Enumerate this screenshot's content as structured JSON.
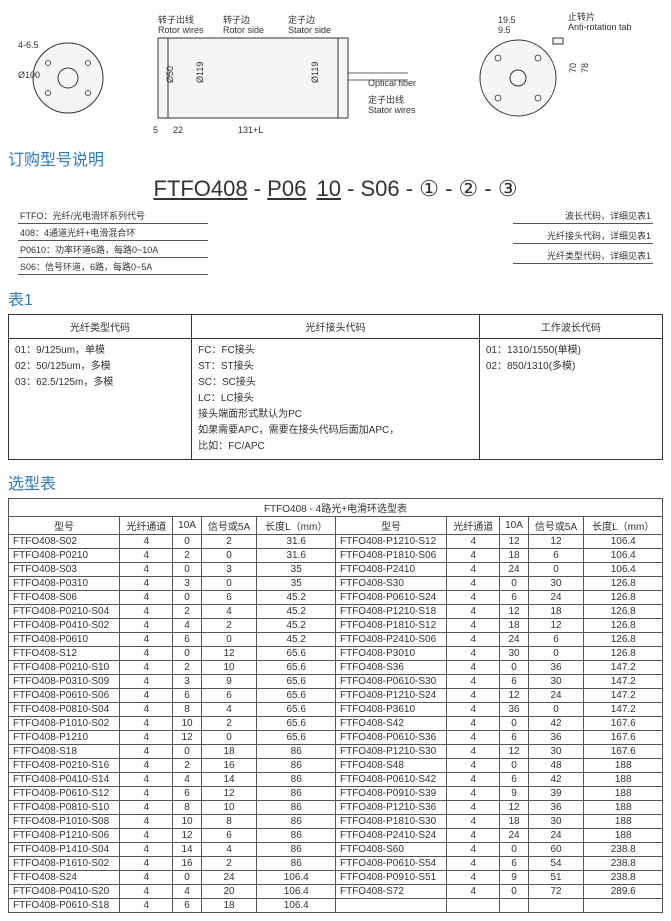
{
  "diagram": {
    "labels": {
      "rotor_cn": "转子出线",
      "rotor_en": "Rotor wires",
      "rotor_side_cn": "转子边",
      "rotor_side_en": "Rotor side",
      "stator_side_cn": "定子边",
      "stator_side_en": "Stator side",
      "stator_cn": "定子出线",
      "stator_en": "Stator wires",
      "optical_fiber": "Optical fiber",
      "anti_rotation_cn": "止转片",
      "anti_rotation_en": "Anti-rotation tab",
      "d100": "Ø100",
      "d50": "Ø50",
      "d119a": "Ø119",
      "d119b": "Ø119",
      "dim46": "4-6.5",
      "dim5": "5",
      "dim22": "22",
      "dim131": "131+L",
      "dim195": "19.5",
      "dim95": "9.5",
      "dim70": "70",
      "dim78": "78"
    }
  },
  "order_title": "订购型号说明",
  "partnum": {
    "p1": "FTFO",
    "p2": "408",
    "dash": " - ",
    "p3": "P06",
    "p4": "10",
    "p5a": "- S06 -",
    "c1": "①",
    "c2": "②",
    "c3": "③"
  },
  "callouts_left": [
    "FTFO：光纤/光电滑环系列代号",
    "408：4通道光纤+电滑混合环",
    "P0610：功率环道6路，每路0~10A",
    "S06：信号环道，6路，每路0~5A"
  ],
  "callouts_right": [
    "波长代码，详细见表1",
    "光纤接头代码，详细见表1",
    "光纤类型代码，详细见表1"
  ],
  "table1_title": "表1",
  "table1_headers": [
    "光纤类型代码",
    "光纤接头代码",
    "工作波长代码"
  ],
  "table1_col1": "01：9/125um，单模\n02：50/125um，多模\n03：62.5/125m，多模",
  "table1_col2": "FC：FC接头\nST：ST接头\nSC：SC接头\nLC：LC接头\n接头端面形式默认为PC\n如果需要APC，需要在接头代码后面加APC，\n比如：FC/APC",
  "table1_col3": "01：1310/1550(单模)\n02：850/1310(多模)",
  "sel_title": "选型表",
  "sel_table_caption": "FTFO408 - 4路光+电滑环选型表",
  "sel_headers": [
    "型号",
    "光纤通道",
    "10A",
    "信号或5A",
    "长度L（mm）"
  ],
  "sel_rows_left": [
    [
      "FTFO408-S02",
      "4",
      "0",
      "2",
      "31.6"
    ],
    [
      "FTFO408-P0210",
      "4",
      "2",
      "0",
      "31.6"
    ],
    [
      "FTFO408-S03",
      "4",
      "0",
      "3",
      "35"
    ],
    [
      "FTFO408-P0310",
      "4",
      "3",
      "0",
      "35"
    ],
    [
      "FTFO408-S06",
      "4",
      "0",
      "6",
      "45.2"
    ],
    [
      "FTFO408-P0210-S04",
      "4",
      "2",
      "4",
      "45.2"
    ],
    [
      "FTFO408-P0410-S02",
      "4",
      "4",
      "2",
      "45.2"
    ],
    [
      "FTFO408-P0610",
      "4",
      "6",
      "0",
      "45.2"
    ],
    [
      "FTFO408-S12",
      "4",
      "0",
      "12",
      "65.6"
    ],
    [
      "FTFO408-P0210-S10",
      "4",
      "2",
      "10",
      "65.6"
    ],
    [
      "FTFO408-P0310-S09",
      "4",
      "3",
      "9",
      "65.6"
    ],
    [
      "FTFO408-P0610-S06",
      "4",
      "6",
      "6",
      "65.6"
    ],
    [
      "FTFO408-P0810-S04",
      "4",
      "8",
      "4",
      "65.6"
    ],
    [
      "FTFO408-P1010-S02",
      "4",
      "10",
      "2",
      "65.6"
    ],
    [
      "FTFO408-P1210",
      "4",
      "12",
      "0",
      "65.6"
    ],
    [
      "FTFO408-S18",
      "4",
      "0",
      "18",
      "86"
    ],
    [
      "FTFO408-P0210-S16",
      "4",
      "2",
      "16",
      "86"
    ],
    [
      "FTFO408-P0410-S14",
      "4",
      "4",
      "14",
      "86"
    ],
    [
      "FTFO408-P0610-S12",
      "4",
      "6",
      "12",
      "86"
    ],
    [
      "FTFO408-P0810-S10",
      "4",
      "8",
      "10",
      "86"
    ],
    [
      "FTFO408-P1010-S08",
      "4",
      "10",
      "8",
      "86"
    ],
    [
      "FTFO408-P1210-S06",
      "4",
      "12",
      "6",
      "86"
    ],
    [
      "FTFO408-P1410-S04",
      "4",
      "14",
      "4",
      "86"
    ],
    [
      "FTFO408-P1610-S02",
      "4",
      "16",
      "2",
      "86"
    ],
    [
      "FTFO408-S24",
      "4",
      "0",
      "24",
      "106.4"
    ],
    [
      "FTFO408-P0410-S20",
      "4",
      "4",
      "20",
      "106.4"
    ],
    [
      "FTFO408-P0610-S18",
      "4",
      "6",
      "18",
      "106.4"
    ]
  ],
  "sel_rows_right": [
    [
      "FTFO408-P1210-S12",
      "4",
      "12",
      "12",
      "106.4"
    ],
    [
      "FTFO408-P1810-S06",
      "4",
      "18",
      "6",
      "106.4"
    ],
    [
      "FTFO408-P2410",
      "4",
      "24",
      "0",
      "106.4"
    ],
    [
      "FTFO408-S30",
      "4",
      "0",
      "30",
      "126.8"
    ],
    [
      "FTFO408-P0610-S24",
      "4",
      "6",
      "24",
      "126.8"
    ],
    [
      "FTFO408-P1210-S18",
      "4",
      "12",
      "18",
      "126.8"
    ],
    [
      "FTFO408-P1810-S12",
      "4",
      "18",
      "12",
      "126.8"
    ],
    [
      "FTFO408-P2410-S06",
      "4",
      "24",
      "6",
      "126.8"
    ],
    [
      "FTFO408-P3010",
      "4",
      "30",
      "0",
      "126.8"
    ],
    [
      "FTFO408-S36",
      "4",
      "0",
      "36",
      "147.2"
    ],
    [
      "FTFO408-P0610-S30",
      "4",
      "6",
      "30",
      "147.2"
    ],
    [
      "FTFO408-P1210-S24",
      "4",
      "12",
      "24",
      "147.2"
    ],
    [
      "FTFO408-P3610",
      "4",
      "36",
      "0",
      "147.2"
    ],
    [
      "FTFO408-S42",
      "4",
      "0",
      "42",
      "167.6"
    ],
    [
      "FTFO408-P0610-S36",
      "4",
      "6",
      "36",
      "167.6"
    ],
    [
      "FTFO408-P1210-S30",
      "4",
      "12",
      "30",
      "167.6"
    ],
    [
      "FTFO408-S48",
      "4",
      "0",
      "48",
      "188"
    ],
    [
      "FTFO408-P0610-S42",
      "4",
      "6",
      "42",
      "188"
    ],
    [
      "FTFO408-P0910-S39",
      "4",
      "9",
      "39",
      "188"
    ],
    [
      "FTFO408-P1210-S36",
      "4",
      "12",
      "36",
      "188"
    ],
    [
      "FTFO408-P1810-S30",
      "4",
      "18",
      "30",
      "188"
    ],
    [
      "FTFO408-P2410-S24",
      "4",
      "24",
      "24",
      "188"
    ],
    [
      "FTFO408-S60",
      "4",
      "0",
      "60",
      "238.8"
    ],
    [
      "FTFO408-P0610-S54",
      "4",
      "6",
      "54",
      "238.8"
    ],
    [
      "FTFO408-P0910-S51",
      "4",
      "9",
      "51",
      "238.8"
    ],
    [
      "FTFO408-S72",
      "4",
      "0",
      "72",
      "289.6"
    ]
  ]
}
